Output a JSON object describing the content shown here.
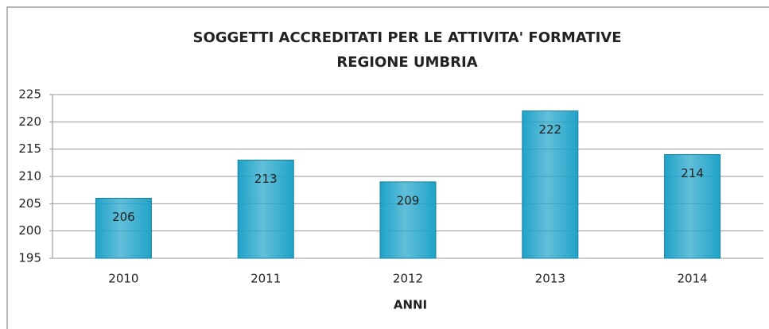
{
  "chart_data": {
    "type": "bar",
    "title": [
      "SOGGETTI ACCREDITATI PER LE ATTIVITA' FORMATIVE",
      "REGIONE UMBRIA"
    ],
    "x_label": "ANNI",
    "categories": [
      "2010",
      "2011",
      "2012",
      "2013",
      "2014"
    ],
    "values": [
      206,
      213,
      209,
      222,
      214
    ],
    "color": "#1fa3c9",
    "ylim": [
      195,
      225
    ],
    "yticks": [
      195,
      200,
      205,
      210,
      215,
      220,
      225
    ],
    "grid": true
  }
}
